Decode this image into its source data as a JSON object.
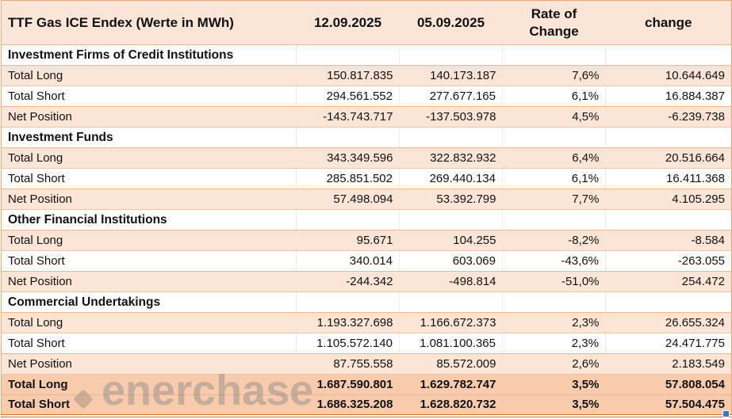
{
  "table": {
    "title": "TTF Gas ICE Endex (Werte in MWh)",
    "columns": [
      "12.09.2025",
      "05.09.2025",
      "Rate of\nChange",
      "change"
    ],
    "rows": [
      {
        "type": "section",
        "label": "Investment Firms of Credit Institutions",
        "v1": "",
        "v2": "",
        "rate": "",
        "change": ""
      },
      {
        "type": "shaded",
        "label": "Total Long",
        "v1": "150.817.835",
        "v2": "140.173.187",
        "rate": "7,6%",
        "change": "10.644.649"
      },
      {
        "type": "white",
        "label": "Total Short",
        "v1": "294.561.552",
        "v2": "277.677.165",
        "rate": "6,1%",
        "change": "16.884.387"
      },
      {
        "type": "shaded",
        "label": "Net Position",
        "v1": "-143.743.717",
        "v2": "-137.503.978",
        "rate": "4,5%",
        "change": "-6.239.738"
      },
      {
        "type": "section",
        "label": "Investment Funds",
        "v1": "",
        "v2": "",
        "rate": "",
        "change": ""
      },
      {
        "type": "shaded",
        "label": "Total Long",
        "v1": "343.349.596",
        "v2": "322.832.932",
        "rate": "6,4%",
        "change": "20.516.664"
      },
      {
        "type": "white",
        "label": "Total Short",
        "v1": "285.851.502",
        "v2": "269.440.134",
        "rate": "6,1%",
        "change": "16.411.368"
      },
      {
        "type": "shaded",
        "label": "Net Position",
        "v1": "57.498.094",
        "v2": "53.392.799",
        "rate": "7,7%",
        "change": "4.105.295"
      },
      {
        "type": "section",
        "label": "Other Financial Institutions",
        "v1": "",
        "v2": "",
        "rate": "",
        "change": ""
      },
      {
        "type": "shaded",
        "label": "Total Long",
        "v1": "95.671",
        "v2": "104.255",
        "rate": "-8,2%",
        "change": "-8.584"
      },
      {
        "type": "white",
        "label": "Total Short",
        "v1": "340.014",
        "v2": "603.069",
        "rate": "-43,6%",
        "change": "-263.055"
      },
      {
        "type": "shaded",
        "label": "Net Position",
        "v1": "-244.342",
        "v2": "-498.814",
        "rate": "-51,0%",
        "change": "254.472"
      },
      {
        "type": "section",
        "label": "Commercial Undertakings",
        "v1": "",
        "v2": "",
        "rate": "",
        "change": ""
      },
      {
        "type": "shaded",
        "label": "Total Long",
        "v1": "1.193.327.698",
        "v2": "1.166.672.373",
        "rate": "2,3%",
        "change": "26.655.324"
      },
      {
        "type": "white",
        "label": "Total Short",
        "v1": "1.105.572.140",
        "v2": "1.081.100.365",
        "rate": "2,3%",
        "change": "24.471.775"
      },
      {
        "type": "shaded",
        "label": "Net Position",
        "v1": "87.755.558",
        "v2": "85.572.009",
        "rate": "2,6%",
        "change": "2.183.549"
      },
      {
        "type": "total",
        "label": "Total Long",
        "v1": "1.687.590.801",
        "v2": "1.629.782.747",
        "rate": "3,5%",
        "change": "57.808.054"
      },
      {
        "type": "total",
        "label": "Total Short",
        "v1": "1.686.325.208",
        "v2": "1.628.820.732",
        "rate": "3,5%",
        "change": "57.504.475"
      }
    ]
  },
  "watermark": {
    "text": "enerchase"
  },
  "colors": {
    "row_shaded": "#fce4d6",
    "row_total": "#f8cbad",
    "grid_border": "#f1b389",
    "bottom_double_border": "#d96d2b",
    "fill_handle": "#4472c4",
    "watermark_gray": "#808080"
  }
}
